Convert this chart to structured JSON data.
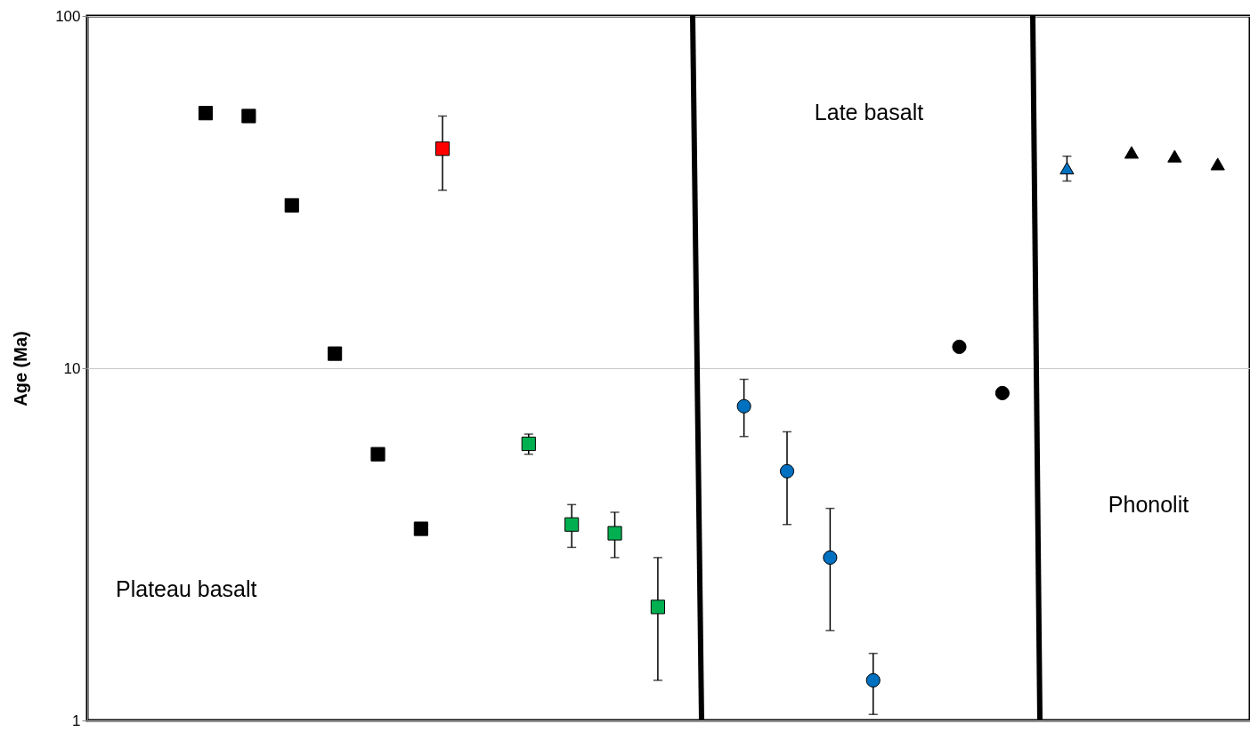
{
  "chart_data": {
    "type": "scatter",
    "ylabel": "Age (Ma)",
    "log": "y",
    "ylim": [
      1,
      100
    ],
    "yticks": [
      1,
      10,
      100
    ],
    "grid": "y",
    "tick_labels": "y",
    "categories": [
      null,
      null,
      null,
      null,
      null,
      null,
      null,
      null,
      null,
      null,
      null,
      null,
      null,
      null,
      null,
      null,
      null,
      null,
      null,
      null,
      null,
      null,
      null,
      null,
      null,
      null,
      null,
      null,
      null,
      null,
      null,
      null,
      null,
      null,
      null,
      null,
      null,
      null,
      null,
      null,
      null,
      null,
      null,
      null,
      null,
      null,
      null,
      null,
      null,
      null,
      null,
      null,
      null,
      null
    ],
    "series": [
      {
        "color": "#000000",
        "marker": "square",
        "values": [
          null,
          null,
          null,
          null,
          null,
          53,
          null,
          52,
          null,
          29,
          null,
          11,
          null,
          5.7,
          null,
          3.5,
          null,
          null,
          null,
          null,
          null,
          null,
          null,
          null,
          null,
          null,
          null,
          null,
          null,
          null,
          null,
          null,
          null,
          null,
          null,
          null,
          null,
          null,
          null,
          null,
          null,
          null,
          null,
          null,
          null,
          null,
          null,
          null,
          null,
          null,
          null,
          null,
          null,
          null
        ]
      },
      {
        "color": "#ff0000",
        "marker": "square",
        "values": [
          null,
          null,
          null,
          null,
          null,
          null,
          null,
          null,
          null,
          null,
          null,
          null,
          null,
          null,
          null,
          null,
          42,
          null,
          null,
          null,
          null,
          null,
          null,
          null,
          null,
          null,
          null,
          null,
          null,
          null,
          null,
          null,
          null,
          null,
          null,
          null,
          null,
          null,
          null,
          null,
          null,
          null,
          null,
          null,
          null,
          null,
          null,
          null,
          null,
          null,
          null,
          null,
          null,
          null
        ],
        "errors": [
          null,
          null,
          null,
          null,
          null,
          null,
          null,
          null,
          null,
          null,
          null,
          null,
          null,
          null,
          null,
          null,
          [
            32,
            52
          ],
          null,
          null,
          null,
          null,
          null,
          null,
          null,
          null,
          null,
          null,
          null,
          null,
          null,
          null,
          null,
          null,
          null,
          null,
          null,
          null,
          null,
          null,
          null,
          null,
          null,
          null,
          null,
          null,
          null,
          null,
          null,
          null,
          null,
          null,
          null,
          null,
          null
        ]
      },
      {
        "color": "#00b050",
        "marker": "square",
        "values": [
          null,
          null,
          null,
          null,
          null,
          null,
          null,
          null,
          null,
          null,
          null,
          null,
          null,
          null,
          null,
          null,
          null,
          null,
          null,
          null,
          6.1,
          null,
          3.6,
          null,
          3.4,
          null,
          2.1,
          null,
          null,
          null,
          null,
          null,
          null,
          null,
          null,
          null,
          null,
          null,
          null,
          null,
          null,
          null,
          null,
          null,
          null,
          null,
          null,
          null,
          null,
          null,
          null,
          null,
          null,
          null
        ],
        "errors": [
          null,
          null,
          null,
          null,
          null,
          null,
          null,
          null,
          null,
          null,
          null,
          null,
          null,
          null,
          null,
          null,
          null,
          null,
          null,
          null,
          [
            5.7,
            6.5
          ],
          null,
          [
            3.1,
            4.1
          ],
          null,
          [
            2.9,
            3.9
          ],
          null,
          [
            1.3,
            2.9
          ],
          null,
          null,
          null,
          null,
          null,
          null,
          null,
          null,
          null,
          null,
          null,
          null,
          null,
          null,
          null,
          null,
          null,
          null,
          null,
          null,
          null,
          null,
          null,
          null,
          null,
          null,
          null
        ]
      },
      {
        "color": "#0070c0",
        "marker": "circle",
        "values": [
          null,
          null,
          null,
          null,
          null,
          null,
          null,
          null,
          null,
          null,
          null,
          null,
          null,
          null,
          null,
          null,
          null,
          null,
          null,
          null,
          null,
          null,
          null,
          null,
          null,
          null,
          null,
          null,
          null,
          null,
          7.8,
          null,
          5.1,
          null,
          2.9,
          null,
          1.3,
          null,
          null,
          null,
          null,
          null,
          null,
          null,
          null,
          null,
          null,
          null,
          null,
          null,
          null,
          null,
          null,
          null
        ],
        "errors": [
          null,
          null,
          null,
          null,
          null,
          null,
          null,
          null,
          null,
          null,
          null,
          null,
          null,
          null,
          null,
          null,
          null,
          null,
          null,
          null,
          null,
          null,
          null,
          null,
          null,
          null,
          null,
          null,
          null,
          null,
          [
            6.4,
            9.3
          ],
          null,
          [
            3.6,
            6.6
          ],
          null,
          [
            1.8,
            4.0
          ],
          null,
          [
            1.04,
            1.55
          ],
          null,
          null,
          null,
          null,
          null,
          null,
          null,
          null,
          null,
          null,
          null,
          null,
          null,
          null,
          null,
          null,
          null
        ]
      },
      {
        "color": "#000000",
        "marker": "circle",
        "values": [
          null,
          null,
          null,
          null,
          null,
          null,
          null,
          null,
          null,
          null,
          null,
          null,
          null,
          null,
          null,
          null,
          null,
          null,
          null,
          null,
          null,
          null,
          null,
          null,
          null,
          null,
          null,
          null,
          null,
          null,
          null,
          null,
          null,
          null,
          null,
          null,
          null,
          null,
          null,
          null,
          11.5,
          null,
          8.5,
          null,
          null,
          null,
          null,
          null,
          null,
          null,
          null,
          null,
          null,
          null
        ]
      },
      {
        "color": "#0070c0",
        "marker": "triangle",
        "values": [
          null,
          null,
          null,
          null,
          null,
          null,
          null,
          null,
          null,
          null,
          null,
          null,
          null,
          null,
          null,
          null,
          null,
          null,
          null,
          null,
          null,
          null,
          null,
          null,
          null,
          null,
          null,
          null,
          null,
          null,
          null,
          null,
          null,
          null,
          null,
          null,
          null,
          null,
          null,
          null,
          null,
          null,
          null,
          null,
          null,
          37,
          null,
          null,
          null,
          null,
          null,
          null,
          null,
          null
        ],
        "errors": [
          null,
          null,
          null,
          null,
          null,
          null,
          null,
          null,
          null,
          null,
          null,
          null,
          null,
          null,
          null,
          null,
          null,
          null,
          null,
          null,
          null,
          null,
          null,
          null,
          null,
          null,
          null,
          null,
          null,
          null,
          null,
          null,
          null,
          null,
          null,
          null,
          null,
          null,
          null,
          null,
          null,
          null,
          null,
          null,
          null,
          [
            34,
            40
          ],
          null,
          null,
          null,
          null,
          null,
          null,
          null,
          null
        ]
      },
      {
        "color": "#000000",
        "marker": "triangle",
        "values": [
          null,
          null,
          null,
          null,
          null,
          null,
          null,
          null,
          null,
          null,
          null,
          null,
          null,
          null,
          null,
          null,
          null,
          null,
          null,
          null,
          null,
          null,
          null,
          null,
          null,
          null,
          null,
          null,
          null,
          null,
          null,
          null,
          null,
          null,
          null,
          null,
          null,
          null,
          null,
          null,
          null,
          null,
          null,
          null,
          null,
          null,
          null,
          null,
          41,
          null,
          40,
          null,
          38,
          null
        ]
      }
    ],
    "annotations": [
      "Plateau basalt",
      "Late basalt",
      "Phonolit"
    ]
  }
}
